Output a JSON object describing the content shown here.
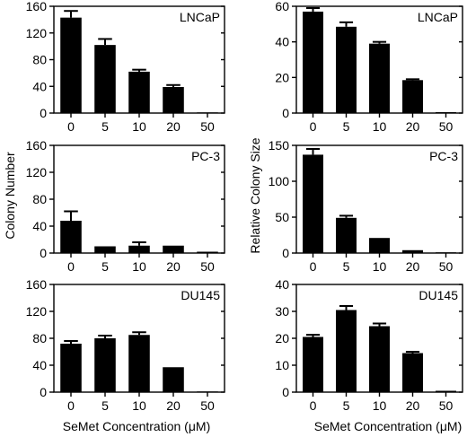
{
  "figure": {
    "left_ylabel": "Colony Number",
    "right_ylabel": "Relative Colony Size",
    "left_xlabel": "SeMet  Concentration (μM)",
    "right_xlabel": "SeMet  Concentration (μM)"
  },
  "chart_data": [
    {
      "type": "bar",
      "panel": "LNCaP colony number",
      "label": "LNCaP",
      "categories": [
        "0",
        "5",
        "10",
        "20",
        "50"
      ],
      "values": [
        143,
        102,
        62,
        39,
        1
      ],
      "errors": [
        10,
        9,
        3,
        3,
        0
      ],
      "ylim": [
        0,
        160
      ],
      "yticks": [
        0,
        40,
        80,
        120,
        160
      ],
      "ylabel": "",
      "xlabel": ""
    },
    {
      "type": "bar",
      "panel": "LNCaP relative colony size",
      "label": "LNCaP",
      "categories": [
        "0",
        "5",
        "10",
        "20",
        "50"
      ],
      "values": [
        57,
        48.5,
        39,
        18.5,
        0.5
      ],
      "errors": [
        2,
        2.5,
        1,
        0.5,
        0
      ],
      "ylim": [
        0,
        60
      ],
      "yticks": [
        0,
        20,
        40,
        60
      ],
      "ylabel": "",
      "xlabel": ""
    },
    {
      "type": "bar",
      "panel": "PC-3 colony number",
      "label": "PC-3",
      "categories": [
        "0",
        "5",
        "10",
        "20",
        "50"
      ],
      "values": [
        48,
        10,
        11,
        11,
        2
      ],
      "errors": [
        14,
        0,
        5,
        0,
        0
      ],
      "ylim": [
        0,
        160
      ],
      "yticks": [
        0,
        40,
        80,
        120,
        160
      ],
      "ylabel": "Colony Number",
      "xlabel": ""
    },
    {
      "type": "bar",
      "panel": "PC-3 relative colony size",
      "label": "PC-3",
      "categories": [
        "0",
        "5",
        "10",
        "20",
        "50"
      ],
      "values": [
        137,
        49,
        21,
        4,
        1
      ],
      "errors": [
        8,
        3,
        0,
        0,
        0
      ],
      "ylim": [
        0,
        150
      ],
      "yticks": [
        0,
        50,
        100,
        150
      ],
      "ylabel": "Relative Colony Size",
      "xlabel": ""
    },
    {
      "type": "bar",
      "panel": "DU145 colony number",
      "label": "DU145",
      "categories": [
        "0",
        "5",
        "10",
        "20",
        "50"
      ],
      "values": [
        72,
        80,
        85,
        37,
        1
      ],
      "errors": [
        4,
        4,
        4,
        0,
        0
      ],
      "ylim": [
        0,
        160
      ],
      "yticks": [
        0,
        40,
        80,
        120,
        160
      ],
      "ylabel": "",
      "xlabel": "SeMet  Concentration (μM)"
    },
    {
      "type": "bar",
      "panel": "DU145 relative colony size",
      "label": "DU145",
      "categories": [
        "0",
        "5",
        "10",
        "20",
        "50"
      ],
      "values": [
        20.5,
        30.5,
        24.5,
        14.5,
        0.5
      ],
      "errors": [
        0.8,
        1.5,
        1,
        0.5,
        0
      ],
      "ylim": [
        0,
        40
      ],
      "yticks": [
        0,
        10,
        20,
        30,
        40
      ],
      "ylabel": "",
      "xlabel": "SeMet  Concentration (μM)"
    }
  ]
}
